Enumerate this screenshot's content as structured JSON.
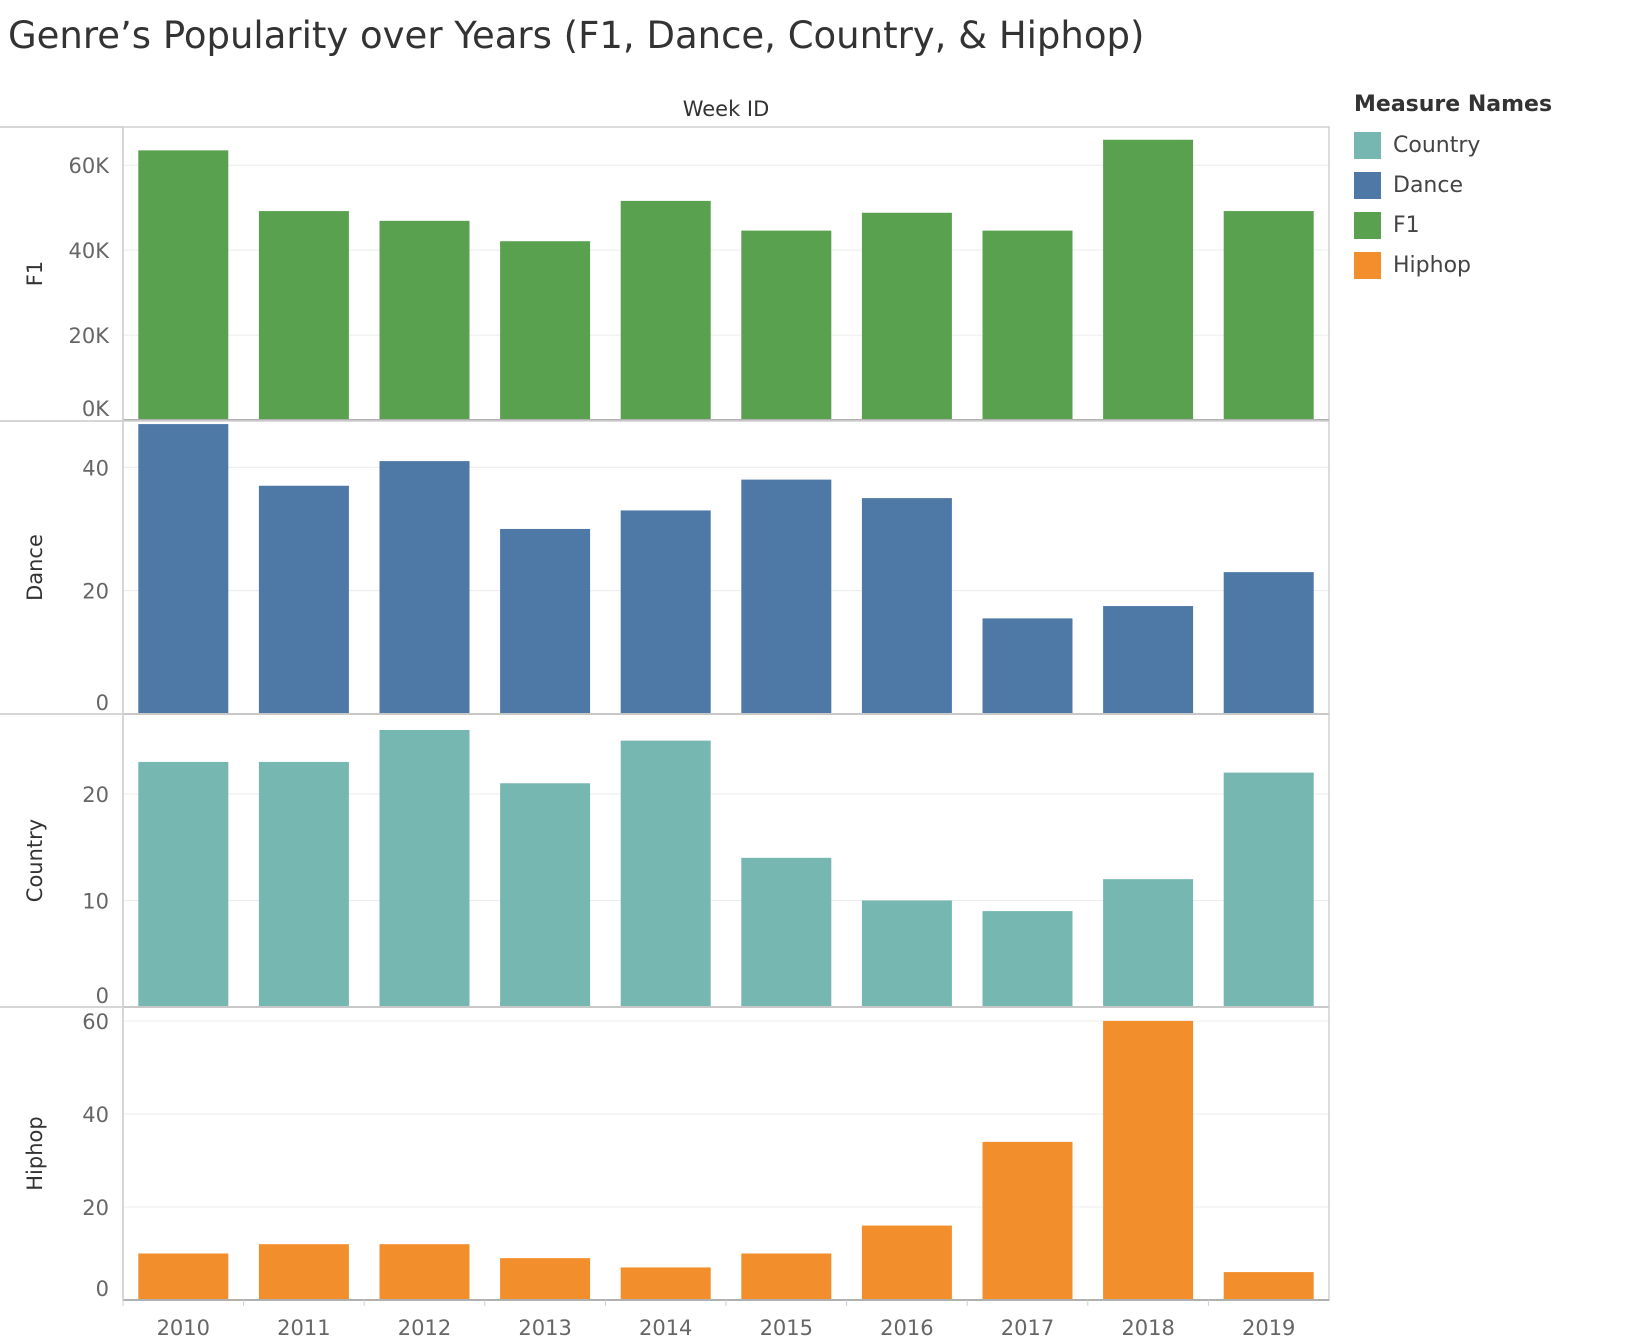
{
  "title": "Genre’s Popularity over Years (F1, Dance, Country, & Hiphop)",
  "chart_data": {
    "type": "bar",
    "title": "Genre’s Popularity over Years (F1, Dance, Country, & Hiphop)",
    "xlabel": "Week ID",
    "categories": [
      "2010",
      "2011",
      "2012",
      "2013",
      "2014",
      "2015",
      "2016",
      "2017",
      "2018",
      "2019"
    ],
    "series": [
      {
        "name": "F1",
        "color": "#59a14f",
        "ylim": [
          0,
          69000
        ],
        "ticks": [
          0,
          20000,
          40000,
          60000
        ],
        "tick_labels": [
          "0K",
          "20K",
          "40K",
          "60K"
        ],
        "values": [
          63500,
          49200,
          46900,
          42100,
          51600,
          44600,
          48800,
          44600,
          66000,
          49200
        ]
      },
      {
        "name": "Dance",
        "color": "#4e79a7",
        "ylim": [
          0,
          47.5
        ],
        "ticks": [
          0,
          20,
          40
        ],
        "tick_labels": [
          "0",
          "20",
          "40"
        ],
        "values": [
          47,
          37,
          41,
          30,
          33,
          38,
          35,
          15.5,
          17.5,
          23
        ]
      },
      {
        "name": "Country",
        "color": "#76b7b2",
        "ylim": [
          0,
          27.5
        ],
        "ticks": [
          0,
          10,
          20
        ],
        "tick_labels": [
          "0",
          "10",
          "20"
        ],
        "values": [
          23,
          23,
          26,
          21,
          25,
          14,
          10,
          9,
          12,
          22
        ]
      },
      {
        "name": "Hiphop",
        "color": "#f28e2b",
        "ylim": [
          0,
          63
        ],
        "ticks": [
          0,
          20,
          40,
          60
        ],
        "tick_labels": [
          "0",
          "20",
          "40",
          "60"
        ],
        "values": [
          10,
          12,
          12,
          9,
          7,
          10,
          16,
          34,
          60,
          6
        ]
      }
    ],
    "legend": {
      "title": "Measure Names",
      "position": "right",
      "items": [
        {
          "label": "Country",
          "color": "#76b7b2"
        },
        {
          "label": "Dance",
          "color": "#4e79a7"
        },
        {
          "label": "F1",
          "color": "#59a14f"
        },
        {
          "label": "Hiphop",
          "color": "#f28e2b"
        }
      ]
    },
    "grid": true
  }
}
